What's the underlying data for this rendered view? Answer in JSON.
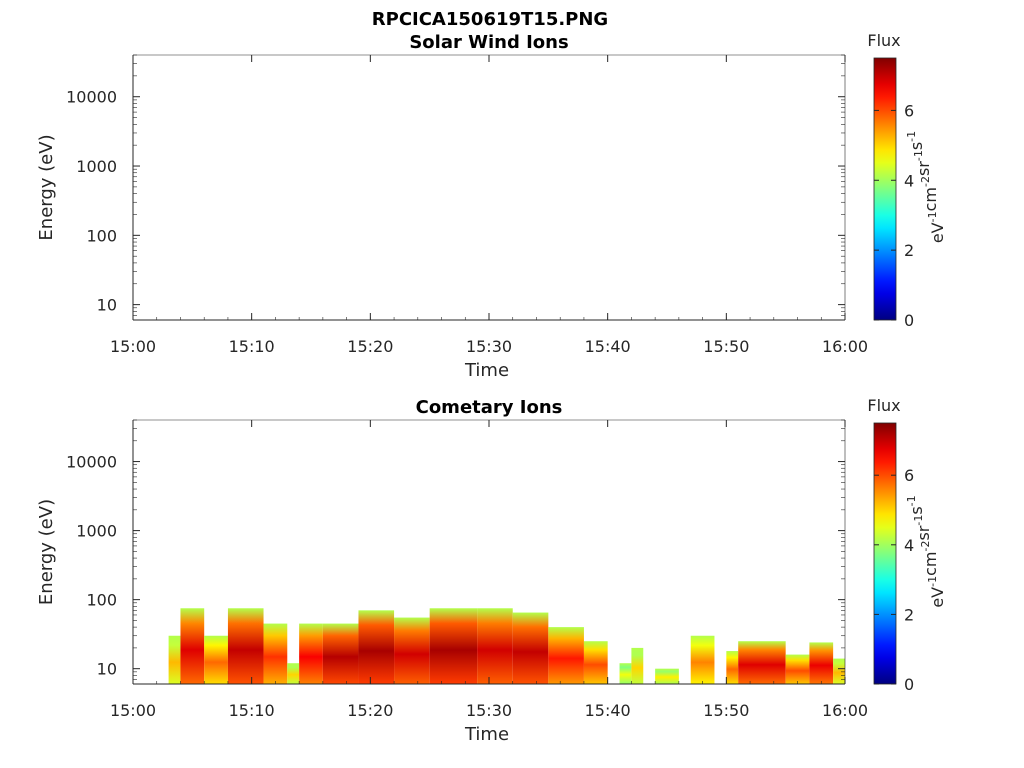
{
  "figure_title": "RPCICA150619T15.PNG",
  "chart_data": [
    {
      "type": "heatmap",
      "title": "Solar Wind Ions",
      "xlabel": "Time",
      "ylabel": "Energy (eV)",
      "x_ticks": [
        "15:00",
        "15:10",
        "15:20",
        "15:30",
        "15:40",
        "15:50",
        "16:00"
      ],
      "xlim": [
        "15:00",
        "16:00"
      ],
      "y_ticks": [
        "10",
        "100",
        "1000",
        "10000"
      ],
      "y_scale": "log",
      "ylim": [
        6,
        40000
      ],
      "colorbar": {
        "title": "Flux",
        "label": "eV-1cm-2sr-1s-1",
        "label_parts": [
          {
            "text": "eV",
            "sup": "-1"
          },
          {
            "text": "cm",
            "sup": "-2"
          },
          {
            "text": "sr",
            "sup": "-1"
          },
          {
            "text": "s",
            "sup": "-1"
          }
        ],
        "ticks": [
          "0",
          "2",
          "4",
          "6"
        ],
        "range": [
          0,
          7.5
        ],
        "colormap": "jet"
      },
      "note_empty": true,
      "segments": []
    },
    {
      "type": "heatmap",
      "title": "Cometary Ions",
      "xlabel": "Time",
      "ylabel": "Energy (eV)",
      "x_ticks": [
        "15:00",
        "15:10",
        "15:20",
        "15:30",
        "15:40",
        "15:50",
        "16:00"
      ],
      "xlim": [
        "15:00",
        "16:00"
      ],
      "y_ticks": [
        "10",
        "100",
        "1000",
        "10000"
      ],
      "y_scale": "log",
      "ylim": [
        6,
        40000
      ],
      "colorbar": {
        "title": "Flux",
        "label": "eV-1cm-2sr-1s-1",
        "label_parts": [
          {
            "text": "eV",
            "sup": "-1"
          },
          {
            "text": "cm",
            "sup": "-2"
          },
          {
            "text": "sr",
            "sup": "-1"
          },
          {
            "text": "s",
            "sup": "-1"
          }
        ],
        "ticks": [
          "0",
          "2",
          "4",
          "6"
        ],
        "range": [
          0,
          7.5
        ],
        "colormap": "jet"
      },
      "segments": [
        {
          "start": "15:03",
          "end": "15:04",
          "top_eV": 30,
          "intensity": 5.2
        },
        {
          "start": "15:04",
          "end": "15:06",
          "top_eV": 75,
          "intensity": 6.8
        },
        {
          "start": "15:06",
          "end": "15:08",
          "top_eV": 30,
          "intensity": 5.8
        },
        {
          "start": "15:08",
          "end": "15:11",
          "top_eV": 75,
          "intensity": 7.0
        },
        {
          "start": "15:11",
          "end": "15:13",
          "top_eV": 45,
          "intensity": 6.2
        },
        {
          "start": "15:13",
          "end": "15:14",
          "top_eV": 12,
          "intensity": 5.0
        },
        {
          "start": "15:14",
          "end": "15:16",
          "top_eV": 45,
          "intensity": 6.6
        },
        {
          "start": "15:16",
          "end": "15:19",
          "top_eV": 45,
          "intensity": 7.1
        },
        {
          "start": "15:19",
          "end": "15:22",
          "top_eV": 70,
          "intensity": 7.2
        },
        {
          "start": "15:22",
          "end": "15:25",
          "top_eV": 55,
          "intensity": 6.9
        },
        {
          "start": "15:25",
          "end": "15:29",
          "top_eV": 75,
          "intensity": 7.2
        },
        {
          "start": "15:29",
          "end": "15:32",
          "top_eV": 75,
          "intensity": 6.9
        },
        {
          "start": "15:32",
          "end": "15:35",
          "top_eV": 65,
          "intensity": 7.0
        },
        {
          "start": "15:35",
          "end": "15:38",
          "top_eV": 40,
          "intensity": 6.4
        },
        {
          "start": "15:38",
          "end": "15:40",
          "top_eV": 25,
          "intensity": 6.0
        },
        {
          "start": "15:41",
          "end": "15:42",
          "top_eV": 12,
          "intensity": 4.6
        },
        {
          "start": "15:42",
          "end": "15:43",
          "top_eV": 20,
          "intensity": 5.0
        },
        {
          "start": "15:44",
          "end": "15:46",
          "top_eV": 10,
          "intensity": 4.8
        },
        {
          "start": "15:47",
          "end": "15:49",
          "top_eV": 30,
          "intensity": 5.6
        },
        {
          "start": "15:50",
          "end": "15:51",
          "top_eV": 18,
          "intensity": 5.8
        },
        {
          "start": "15:51",
          "end": "15:55",
          "top_eV": 25,
          "intensity": 6.8
        },
        {
          "start": "15:55",
          "end": "15:57",
          "top_eV": 16,
          "intensity": 6.0
        },
        {
          "start": "15:57",
          "end": "15:59",
          "top_eV": 24,
          "intensity": 6.7
        },
        {
          "start": "15:59",
          "end": "16:00",
          "top_eV": 14,
          "intensity": 5.2
        }
      ]
    }
  ]
}
